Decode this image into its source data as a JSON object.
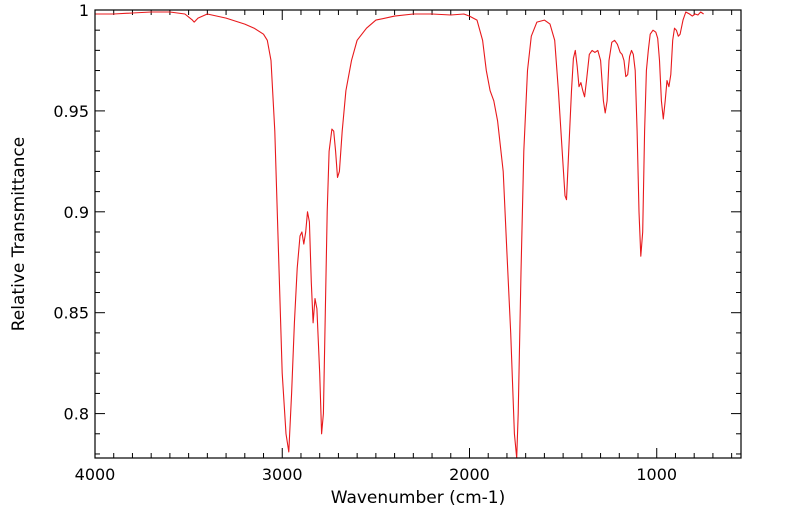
{
  "chart_data": {
    "type": "line",
    "xlabel": "Wavenumber (cm-1)",
    "ylabel": "Relative Transmittance",
    "xlim": [
      4000,
      550
    ],
    "ylim": [
      0.778,
      1.0
    ],
    "x_axis_reversed": true,
    "grid": false,
    "legend": "none",
    "x_ticks": [
      {
        "value": 4000,
        "label": "4000"
      },
      {
        "value": 3000,
        "label": "3000"
      },
      {
        "value": 2000,
        "label": "2000"
      },
      {
        "value": 1000,
        "label": "1000"
      }
    ],
    "y_ticks": [
      {
        "value": 1.0,
        "label": "1"
      },
      {
        "value": 0.95,
        "label": "0.95"
      },
      {
        "value": 0.9,
        "label": "0.9"
      },
      {
        "value": 0.85,
        "label": "0.85"
      },
      {
        "value": 0.8,
        "label": "0.8"
      }
    ],
    "series": [
      {
        "color": "#e8191c",
        "points": [
          [
            4000,
            0.998
          ],
          [
            3900,
            0.998
          ],
          [
            3800,
            0.9985
          ],
          [
            3700,
            0.999
          ],
          [
            3600,
            0.999
          ],
          [
            3520,
            0.998
          ],
          [
            3480,
            0.995
          ],
          [
            3470,
            0.994
          ],
          [
            3450,
            0.996
          ],
          [
            3400,
            0.998
          ],
          [
            3300,
            0.996
          ],
          [
            3200,
            0.993
          ],
          [
            3150,
            0.991
          ],
          [
            3100,
            0.988
          ],
          [
            3080,
            0.985
          ],
          [
            3060,
            0.975
          ],
          [
            3040,
            0.94
          ],
          [
            3020,
            0.88
          ],
          [
            3000,
            0.82
          ],
          [
            2980,
            0.79
          ],
          [
            2965,
            0.781
          ],
          [
            2950,
            0.81
          ],
          [
            2935,
            0.845
          ],
          [
            2920,
            0.872
          ],
          [
            2905,
            0.888
          ],
          [
            2895,
            0.89
          ],
          [
            2885,
            0.884
          ],
          [
            2875,
            0.89
          ],
          [
            2865,
            0.9
          ],
          [
            2855,
            0.895
          ],
          [
            2845,
            0.865
          ],
          [
            2835,
            0.845
          ],
          [
            2825,
            0.857
          ],
          [
            2815,
            0.852
          ],
          [
            2800,
            0.82
          ],
          [
            2790,
            0.79
          ],
          [
            2780,
            0.8
          ],
          [
            2770,
            0.85
          ],
          [
            2760,
            0.9
          ],
          [
            2750,
            0.93
          ],
          [
            2735,
            0.941
          ],
          [
            2725,
            0.94
          ],
          [
            2715,
            0.93
          ],
          [
            2705,
            0.917
          ],
          [
            2695,
            0.92
          ],
          [
            2680,
            0.94
          ],
          [
            2660,
            0.96
          ],
          [
            2630,
            0.975
          ],
          [
            2600,
            0.985
          ],
          [
            2550,
            0.991
          ],
          [
            2500,
            0.995
          ],
          [
            2400,
            0.997
          ],
          [
            2300,
            0.998
          ],
          [
            2200,
            0.998
          ],
          [
            2100,
            0.9975
          ],
          [
            2030,
            0.998
          ],
          [
            2000,
            0.997
          ],
          [
            1960,
            0.995
          ],
          [
            1930,
            0.985
          ],
          [
            1910,
            0.97
          ],
          [
            1890,
            0.96
          ],
          [
            1870,
            0.955
          ],
          [
            1850,
            0.945
          ],
          [
            1820,
            0.92
          ],
          [
            1800,
            0.88
          ],
          [
            1780,
            0.84
          ],
          [
            1760,
            0.79
          ],
          [
            1748,
            0.778
          ],
          [
            1740,
            0.8
          ],
          [
            1725,
            0.87
          ],
          [
            1710,
            0.93
          ],
          [
            1690,
            0.97
          ],
          [
            1670,
            0.987
          ],
          [
            1640,
            0.994
          ],
          [
            1600,
            0.995
          ],
          [
            1570,
            0.993
          ],
          [
            1545,
            0.985
          ],
          [
            1525,
            0.96
          ],
          [
            1505,
            0.93
          ],
          [
            1490,
            0.908
          ],
          [
            1482,
            0.906
          ],
          [
            1470,
            0.93
          ],
          [
            1455,
            0.96
          ],
          [
            1445,
            0.976
          ],
          [
            1435,
            0.98
          ],
          [
            1425,
            0.972
          ],
          [
            1415,
            0.962
          ],
          [
            1405,
            0.964
          ],
          [
            1395,
            0.96
          ],
          [
            1385,
            0.957
          ],
          [
            1375,
            0.965
          ],
          [
            1360,
            0.978
          ],
          [
            1345,
            0.98
          ],
          [
            1330,
            0.979
          ],
          [
            1315,
            0.98
          ],
          [
            1300,
            0.975
          ],
          [
            1285,
            0.955
          ],
          [
            1275,
            0.949
          ],
          [
            1265,
            0.955
          ],
          [
            1255,
            0.975
          ],
          [
            1240,
            0.984
          ],
          [
            1225,
            0.985
          ],
          [
            1210,
            0.983
          ],
          [
            1195,
            0.979
          ],
          [
            1185,
            0.978
          ],
          [
            1175,
            0.975
          ],
          [
            1165,
            0.967
          ],
          [
            1155,
            0.968
          ],
          [
            1145,
            0.977
          ],
          [
            1135,
            0.98
          ],
          [
            1125,
            0.978
          ],
          [
            1115,
            0.97
          ],
          [
            1105,
            0.94
          ],
          [
            1095,
            0.9
          ],
          [
            1085,
            0.878
          ],
          [
            1075,
            0.89
          ],
          [
            1065,
            0.94
          ],
          [
            1055,
            0.97
          ],
          [
            1045,
            0.98
          ],
          [
            1035,
            0.988
          ],
          [
            1020,
            0.99
          ],
          [
            1005,
            0.989
          ],
          [
            995,
            0.986
          ],
          [
            985,
            0.975
          ],
          [
            975,
            0.955
          ],
          [
            965,
            0.946
          ],
          [
            955,
            0.955
          ],
          [
            945,
            0.965
          ],
          [
            935,
            0.962
          ],
          [
            925,
            0.968
          ],
          [
            915,
            0.985
          ],
          [
            905,
            0.991
          ],
          [
            895,
            0.99
          ],
          [
            885,
            0.987
          ],
          [
            875,
            0.988
          ],
          [
            860,
            0.995
          ],
          [
            845,
            0.999
          ],
          [
            825,
            0.998
          ],
          [
            810,
            0.997
          ],
          [
            795,
            0.998
          ],
          [
            780,
            0.9975
          ],
          [
            765,
            0.999
          ],
          [
            750,
            0.998
          ]
        ]
      }
    ]
  }
}
